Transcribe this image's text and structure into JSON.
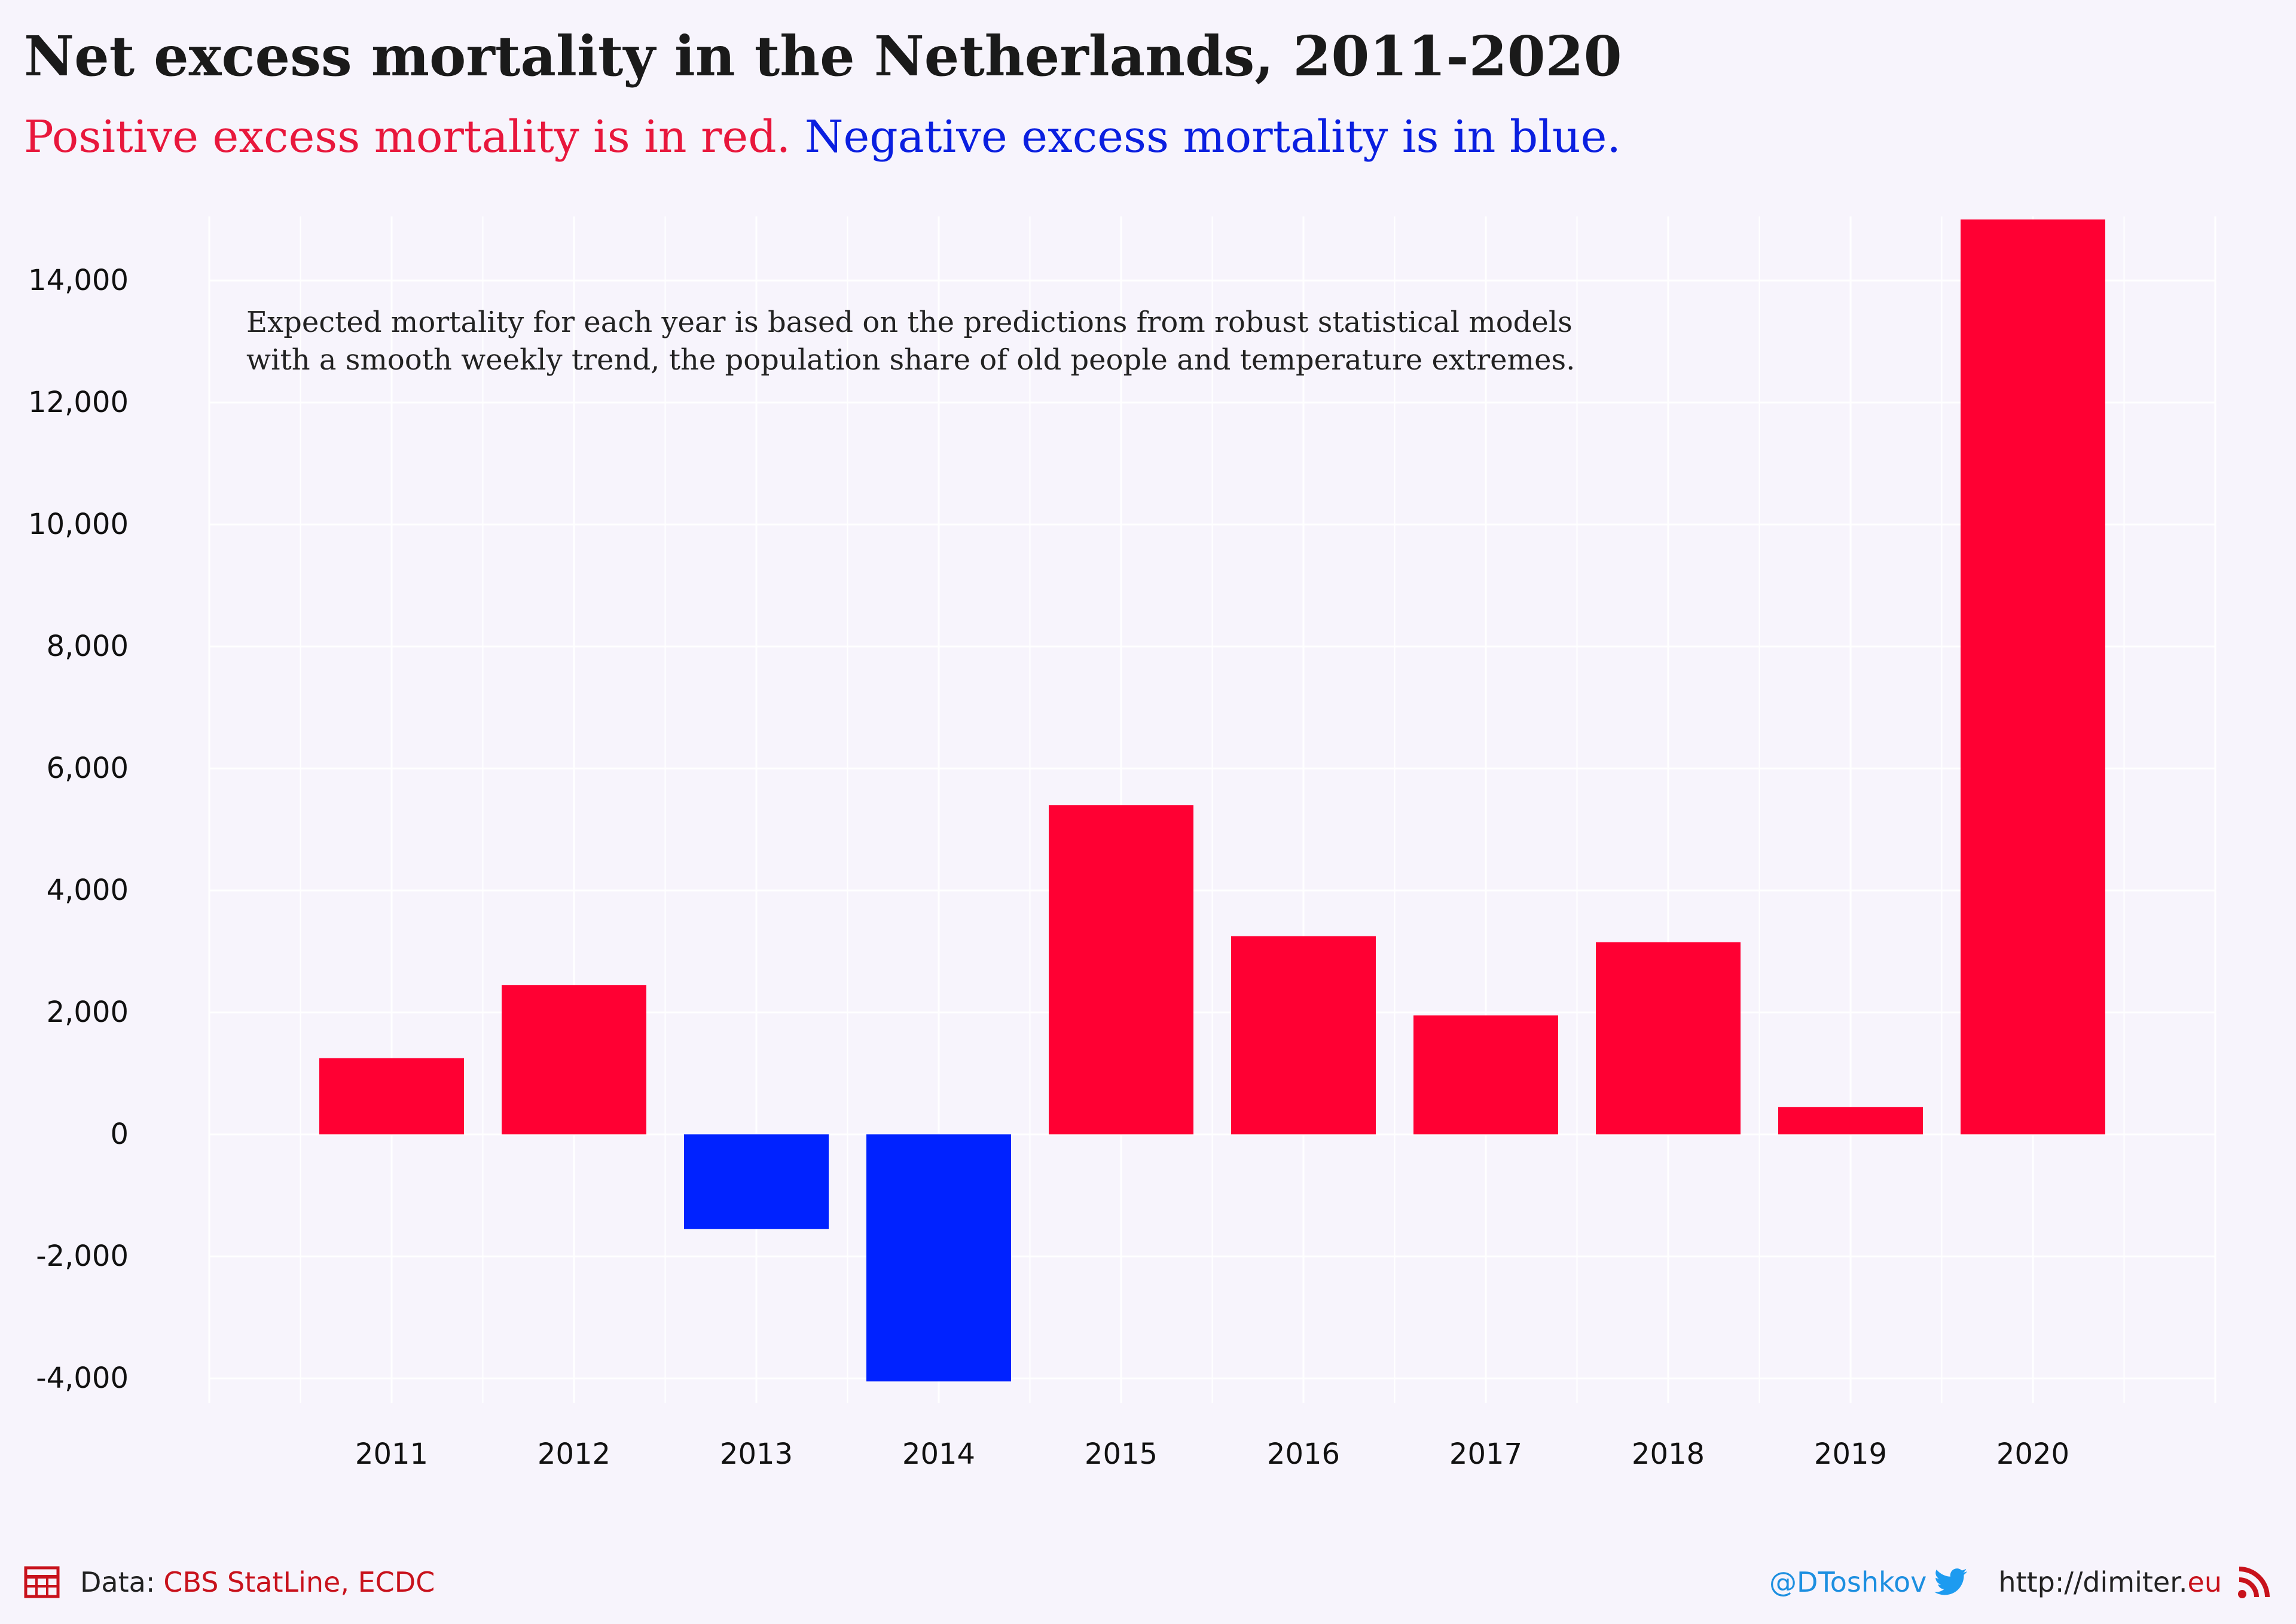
{
  "title": "Net excess mortality in the Netherlands, 2011-2020",
  "subtitle": {
    "red_text": "Positive excess mortality is in red.",
    "blue_text": "Negative excess mortality is in blue."
  },
  "annotation": {
    "line1": "Expected mortality for each year is based on the predictions from robust statistical models",
    "line2": "with a smooth weekly trend, the population share of old people and temperature extremes."
  },
  "footer": {
    "data_label": "Data:",
    "data_sources": "CBS StatLine, ECDC",
    "twitter": "@DToshkov",
    "url_prefix": "http://dimiter.",
    "url_suffix": "eu",
    "icons": [
      "table-icon",
      "twitter-bird-icon",
      "rss-feed-icon"
    ]
  },
  "colors": {
    "positive": "#ff0033",
    "negative": "#0022ff",
    "background": "#f7f4fc",
    "grid": "#ffffff"
  },
  "chart_data": {
    "type": "bar",
    "categories": [
      "2011",
      "2012",
      "2013",
      "2014",
      "2015",
      "2016",
      "2017",
      "2018",
      "2019",
      "2020"
    ],
    "values": [
      1250,
      2450,
      -1550,
      -4050,
      5400,
      3250,
      1950,
      3150,
      450,
      15000
    ],
    "ylim": [
      -4400,
      15050
    ],
    "yticks": [
      -4000,
      -2000,
      0,
      2000,
      4000,
      6000,
      8000,
      10000,
      12000,
      14000
    ],
    "ytick_labels": [
      "-4,000",
      "-2,000",
      "0",
      "2,000",
      "4,000",
      "6,000",
      "8,000",
      "10,000",
      "12,000",
      "14,000"
    ],
    "xlabel": "",
    "ylabel": "",
    "grid": true,
    "legend": "none"
  }
}
